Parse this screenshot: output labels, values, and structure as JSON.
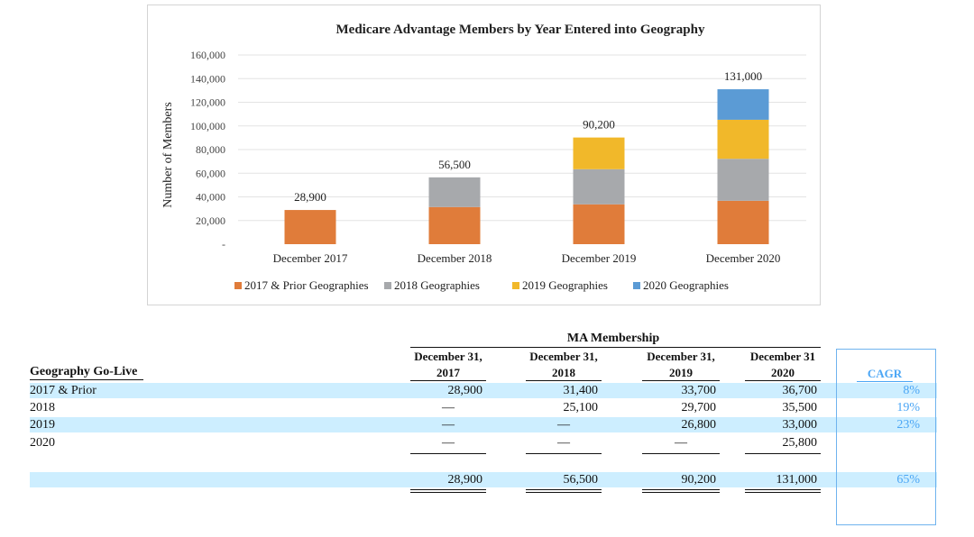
{
  "chart_data": {
    "type": "bar",
    "stacked": true,
    "title": "Medicare Advantage Members by Year Entered into Geography",
    "ylabel": "Number of Members",
    "xlabel": "",
    "ylim": [
      0,
      160000
    ],
    "yticks": [
      "-",
      "20,000",
      "40,000",
      "60,000",
      "80,000",
      "100,000",
      "120,000",
      "140,000",
      "160,000"
    ],
    "categories": [
      "December 2017",
      "December 2018",
      "December 2019",
      "December 2020"
    ],
    "series": [
      {
        "name": "2017 & Prior Geographies",
        "color": "#e07c3a",
        "values": [
          28900,
          31400,
          33700,
          36700
        ]
      },
      {
        "name": "2018 Geographies",
        "color": "#a7a9ac",
        "values": [
          0,
          25100,
          29700,
          35500
        ]
      },
      {
        "name": "2019 Geographies",
        "color": "#f1b82a",
        "values": [
          0,
          0,
          26800,
          33000
        ]
      },
      {
        "name": "2020 Geographies",
        "color": "#5b9bd5",
        "values": [
          0,
          0,
          0,
          25800
        ]
      }
    ],
    "totals": [
      "28,900",
      "56,500",
      "90,200",
      "131,000"
    ],
    "grid": true,
    "legend": "bottom"
  },
  "table": {
    "title": "MA Membership",
    "row_header": "Geography Go-Live",
    "col_headers": [
      [
        "December 31,",
        "2017"
      ],
      [
        "December 31,",
        "2018"
      ],
      [
        "December 31,",
        "2019"
      ],
      [
        "December 31",
        "2020"
      ]
    ],
    "cagr_header": "CAGR",
    "rows": [
      {
        "label": "2017 & Prior",
        "values": [
          "28,900",
          "31,400",
          "33,700",
          "36,700"
        ],
        "cagr": "8%"
      },
      {
        "label": "2018",
        "values": [
          "—",
          "25,100",
          "29,700",
          "35,500"
        ],
        "cagr": "19%"
      },
      {
        "label": "2019",
        "values": [
          "—",
          "—",
          "26,800",
          "33,000"
        ],
        "cagr": "23%"
      },
      {
        "label": "2020",
        "values": [
          "—",
          "—",
          "—",
          "25,800"
        ],
        "cagr": ""
      }
    ],
    "total": {
      "values": [
        "28,900",
        "56,500",
        "90,200",
        "131,000"
      ],
      "cagr": "65%"
    }
  }
}
